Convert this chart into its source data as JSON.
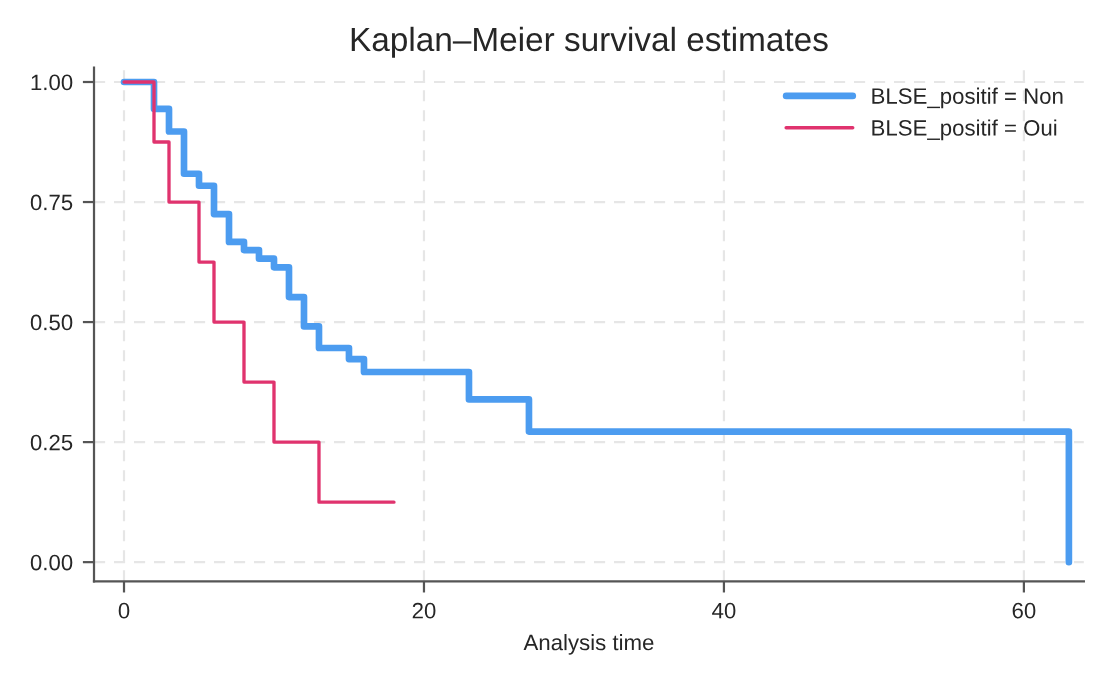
{
  "chart_data": {
    "type": "step",
    "title": "Kaplan–Meier survival estimates",
    "xlabel": "Analysis time",
    "series": [
      {
        "name": "BLSE_positif = Non",
        "color": "#4c9cf0",
        "x": [
          0,
          2,
          3,
          4,
          5,
          6,
          7,
          8,
          9,
          10,
          11,
          12,
          13,
          15,
          16,
          23,
          27,
          63
        ],
        "values": [
          1.0,
          0.944,
          0.897,
          0.809,
          0.784,
          0.725,
          0.667,
          0.65,
          0.632,
          0.614,
          0.552,
          0.491,
          0.446,
          0.423,
          0.396,
          0.339,
          0.272,
          0.0
        ]
      },
      {
        "name": "BLSE_positif = Oui",
        "color": "#e0336e",
        "x": [
          0,
          2,
          3,
          5,
          6,
          8,
          10,
          13,
          18
        ],
        "values": [
          1.0,
          0.875,
          0.75,
          0.625,
          0.5,
          0.375,
          0.25,
          0.125,
          0.125
        ]
      }
    ],
    "xlim": [
      -2,
      64
    ],
    "ylim": [
      -0.04,
      1.03
    ],
    "xticks": [
      0,
      20,
      40,
      60
    ],
    "yticks": [
      {
        "value": 0,
        "label": "0.00"
      },
      {
        "value": 0.25,
        "label": "0.25"
      },
      {
        "value": 0.5,
        "label": "0.50"
      },
      {
        "value": 0.75,
        "label": "0.75"
      },
      {
        "value": 1,
        "label": "1.00"
      }
    ],
    "grid": true,
    "legend": "top right",
    "line_style": "solid"
  }
}
